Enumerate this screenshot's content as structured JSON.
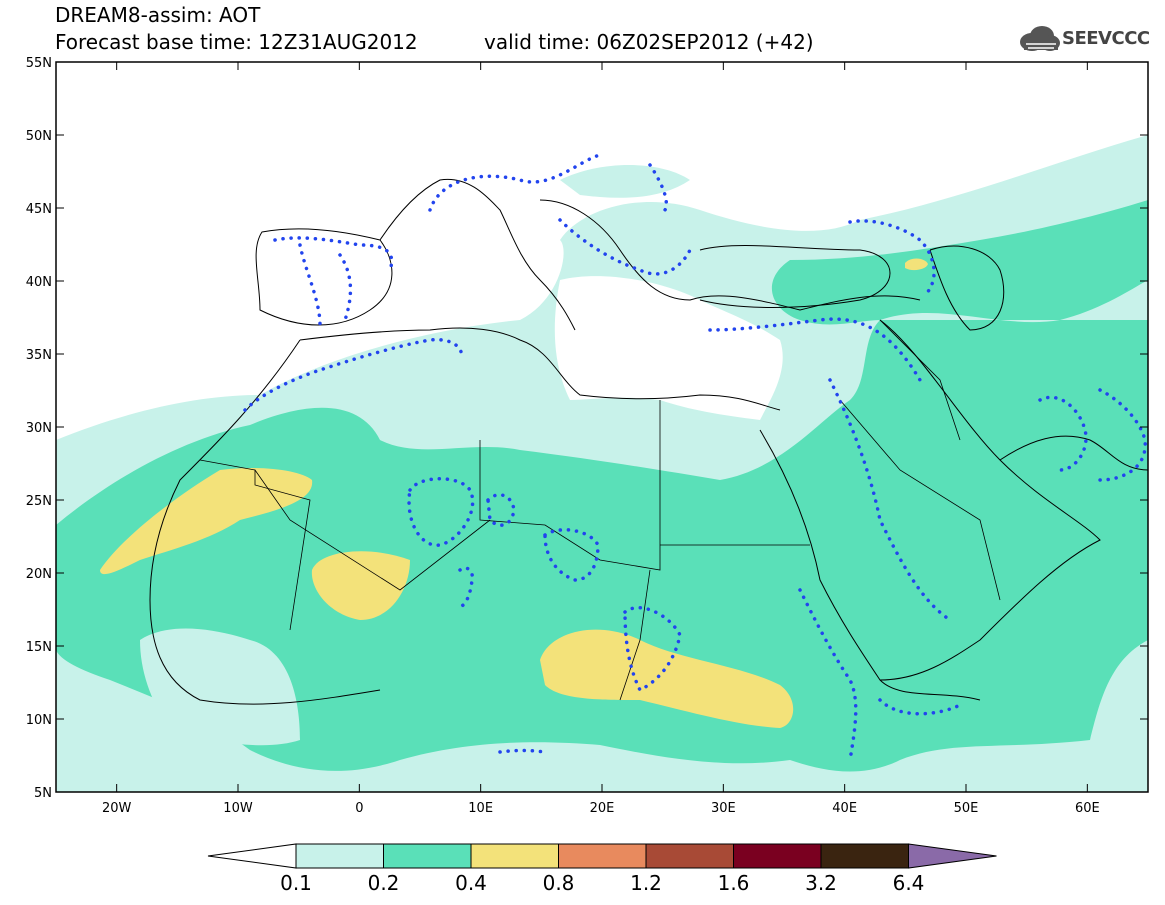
{
  "header": {
    "title_line1": "DREAM8-assim: AOT",
    "title_line2": "Forecast base time: 12Z31AUG2012",
    "valid_time": "valid time: 06Z02SEP2012 (+42)",
    "logo_text": "SEEVCCC"
  },
  "map": {
    "region": "North Africa, Mediterranean, Middle East",
    "lon_range": [
      -25,
      65
    ],
    "lat_range": [
      5,
      55
    ],
    "lat_ticks": [
      "5N",
      "10N",
      "15N",
      "20N",
      "25N",
      "30N",
      "35N",
      "40N",
      "45N",
      "50N",
      "55N"
    ],
    "lon_ticks": [
      "20W",
      "10W",
      "0",
      "10E",
      "20E",
      "30E",
      "40E",
      "50E",
      "60E"
    ],
    "background_color": "#ffffff",
    "coastline_color": "#000000",
    "contour_dotted_color": "#2244ee"
  },
  "legend": {
    "labels": [
      "0.1",
      "0.2",
      "0.4",
      "0.8",
      "1.2",
      "1.6",
      "3.2",
      "6.4"
    ],
    "colors": [
      "#ffffff",
      "#c8f2ea",
      "#5ae0b8",
      "#f3e27a",
      "#e88a5e",
      "#a84a36",
      "#7a0020",
      "#3a2410",
      "#8a6aa8"
    ]
  }
}
